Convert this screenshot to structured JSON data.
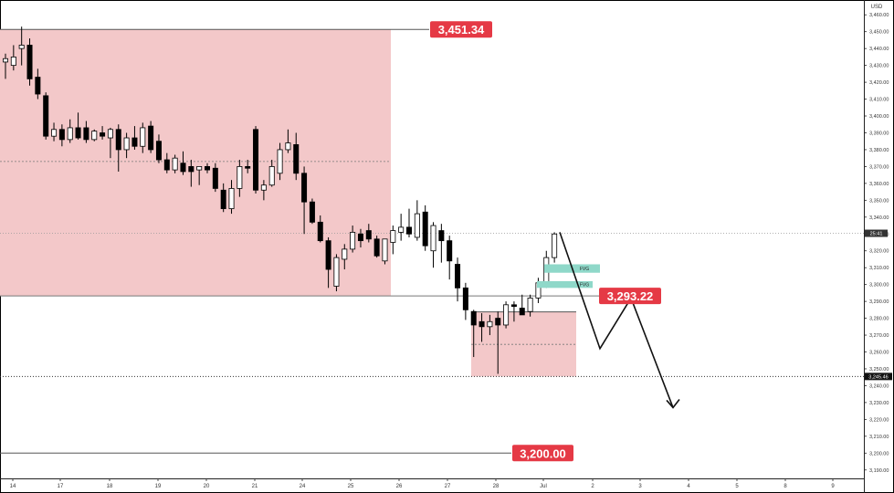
{
  "currency": "USD",
  "price_tag": "25:41",
  "annotations": {
    "resistance": "3,451.34",
    "support": "3,293.22",
    "target": "3,200.00",
    "zone_low": "3,245.46",
    "fvg_upper": "FVG",
    "fvg_lower": "FVG"
  },
  "colors": {
    "bull_body": "#ffffff",
    "bear_body": "#000000",
    "zone_fill": "#f3c8c9",
    "label_bg": "#e53945",
    "fvg_fill": "#8fd8c9",
    "grid": "#999999"
  },
  "chart_data": {
    "type": "candlestick",
    "y_axis": {
      "min": 3185,
      "max": 3465,
      "ticks": [
        3190,
        3200,
        3210,
        3220,
        3230,
        3240,
        3250,
        3260,
        3270,
        3280,
        3290,
        3300,
        3310,
        3320,
        3330,
        3340,
        3350,
        3360,
        3370,
        3380,
        3390,
        3400,
        3410,
        3420,
        3430,
        3440,
        3450,
        3460
      ],
      "tick_labels": [
        "3,190.00",
        "3,200.00",
        "3,210.00",
        "3,220.00",
        "3,230.00",
        "3,240.00",
        "3,250.00",
        "3,260.00",
        "3,270.00",
        "3,280.00",
        "3,290.00",
        "3,300.00",
        "3,310.00",
        "3,320.00",
        "3,330.00",
        "3,340.00",
        "3,350.00",
        "3,360.00",
        "3,370.00",
        "3,380.00",
        "3,390.00",
        "3,400.00",
        "3,410.00",
        "3,420.00",
        "3,430.00",
        "3,440.00",
        "3,450.00",
        "3,460.00"
      ]
    },
    "x_axis": {
      "labels": [
        "14",
        "17",
        "18",
        "19",
        "20",
        "21",
        "24",
        "25",
        "26",
        "27",
        "28",
        "Jul",
        "2",
        "3",
        "4",
        "5",
        "8",
        "9"
      ]
    },
    "candles": [
      {
        "o": 3432,
        "h": 3437,
        "l": 3422,
        "c": 3434
      },
      {
        "o": 3430,
        "h": 3442,
        "l": 3427,
        "c": 3435
      },
      {
        "o": 3440,
        "h": 3453,
        "l": 3430,
        "c": 3442
      },
      {
        "o": 3442,
        "h": 3446,
        "l": 3418,
        "c": 3422
      },
      {
        "o": 3423,
        "h": 3428,
        "l": 3410,
        "c": 3413
      },
      {
        "o": 3412,
        "h": 3414,
        "l": 3386,
        "c": 3388
      },
      {
        "o": 3388,
        "h": 3396,
        "l": 3385,
        "c": 3392
      },
      {
        "o": 3392,
        "h": 3395,
        "l": 3382,
        "c": 3386
      },
      {
        "o": 3386,
        "h": 3398,
        "l": 3384,
        "c": 3393
      },
      {
        "o": 3393,
        "h": 3402,
        "l": 3386,
        "c": 3387
      },
      {
        "o": 3393,
        "h": 3397,
        "l": 3384,
        "c": 3386
      },
      {
        "o": 3386,
        "h": 3392,
        "l": 3385,
        "c": 3391
      },
      {
        "o": 3390,
        "h": 3394,
        "l": 3386,
        "c": 3388
      },
      {
        "o": 3387,
        "h": 3393,
        "l": 3375,
        "c": 3392
      },
      {
        "o": 3392,
        "h": 3395,
        "l": 3367,
        "c": 3380
      },
      {
        "o": 3380,
        "h": 3390,
        "l": 3375,
        "c": 3387
      },
      {
        "o": 3387,
        "h": 3394,
        "l": 3380,
        "c": 3382
      },
      {
        "o": 3382,
        "h": 3396,
        "l": 3378,
        "c": 3393
      },
      {
        "o": 3394,
        "h": 3397,
        "l": 3378,
        "c": 3380
      },
      {
        "o": 3385,
        "h": 3389,
        "l": 3372,
        "c": 3374
      },
      {
        "o": 3374,
        "h": 3378,
        "l": 3366,
        "c": 3368
      },
      {
        "o": 3368,
        "h": 3377,
        "l": 3366,
        "c": 3375
      },
      {
        "o": 3372,
        "h": 3379,
        "l": 3365,
        "c": 3367
      },
      {
        "o": 3370,
        "h": 3374,
        "l": 3358,
        "c": 3367
      },
      {
        "o": 3368,
        "h": 3370,
        "l": 3359,
        "c": 3370
      },
      {
        "o": 3370,
        "h": 3372,
        "l": 3366,
        "c": 3368
      },
      {
        "o": 3369,
        "h": 3372,
        "l": 3355,
        "c": 3357
      },
      {
        "o": 3356,
        "h": 3360,
        "l": 3343,
        "c": 3345
      },
      {
        "o": 3345,
        "h": 3362,
        "l": 3342,
        "c": 3357
      },
      {
        "o": 3357,
        "h": 3374,
        "l": 3352,
        "c": 3370
      },
      {
        "o": 3370,
        "h": 3374,
        "l": 3366,
        "c": 3369
      },
      {
        "o": 3392,
        "h": 3394,
        "l": 3354,
        "c": 3356
      },
      {
        "o": 3356,
        "h": 3362,
        "l": 3350,
        "c": 3359
      },
      {
        "o": 3359,
        "h": 3374,
        "l": 3358,
        "c": 3370
      },
      {
        "o": 3366,
        "h": 3384,
        "l": 3362,
        "c": 3380
      },
      {
        "o": 3380,
        "h": 3392,
        "l": 3378,
        "c": 3384
      },
      {
        "o": 3383,
        "h": 3390,
        "l": 3362,
        "c": 3366
      },
      {
        "o": 3366,
        "h": 3370,
        "l": 3330,
        "c": 3349
      },
      {
        "o": 3349,
        "h": 3351,
        "l": 3336,
        "c": 3337
      },
      {
        "o": 3337,
        "h": 3341,
        "l": 3325,
        "c": 3326
      },
      {
        "o": 3326,
        "h": 3328,
        "l": 3298,
        "c": 3309
      },
      {
        "o": 3299,
        "h": 3318,
        "l": 3296,
        "c": 3316
      },
      {
        "o": 3315,
        "h": 3324,
        "l": 3309,
        "c": 3321
      },
      {
        "o": 3321,
        "h": 3335,
        "l": 3319,
        "c": 3331
      },
      {
        "o": 3330,
        "h": 3333,
        "l": 3322,
        "c": 3326
      },
      {
        "o": 3332,
        "h": 3336,
        "l": 3325,
        "c": 3327
      },
      {
        "o": 3327,
        "h": 3329,
        "l": 3316,
        "c": 3317
      },
      {
        "o": 3314,
        "h": 3327,
        "l": 3312,
        "c": 3327
      },
      {
        "o": 3325,
        "h": 3335,
        "l": 3318,
        "c": 3332
      },
      {
        "o": 3331,
        "h": 3342,
        "l": 3326,
        "c": 3334
      },
      {
        "o": 3334,
        "h": 3345,
        "l": 3328,
        "c": 3330
      },
      {
        "o": 3328,
        "h": 3350,
        "l": 3326,
        "c": 3342
      },
      {
        "o": 3343,
        "h": 3347,
        "l": 3320,
        "c": 3323
      },
      {
        "o": 3320,
        "h": 3337,
        "l": 3310,
        "c": 3335
      },
      {
        "o": 3332,
        "h": 3336,
        "l": 3313,
        "c": 3326
      },
      {
        "o": 3326,
        "h": 3329,
        "l": 3303,
        "c": 3314
      },
      {
        "o": 3312,
        "h": 3316,
        "l": 3290,
        "c": 3298
      },
      {
        "o": 3298,
        "h": 3301,
        "l": 3279,
        "c": 3285
      },
      {
        "o": 3284,
        "h": 3285,
        "l": 3257,
        "c": 3276
      },
      {
        "o": 3278,
        "h": 3283,
        "l": 3266,
        "c": 3275
      },
      {
        "o": 3275,
        "h": 3282,
        "l": 3270,
        "c": 3278
      },
      {
        "o": 3280,
        "h": 3284,
        "l": 3247,
        "c": 3276
      },
      {
        "o": 3276,
        "h": 3290,
        "l": 3274,
        "c": 3288
      },
      {
        "o": 3288,
        "h": 3290,
        "l": 3278,
        "c": 3287
      },
      {
        "o": 3286,
        "h": 3294,
        "l": 3282,
        "c": 3282
      },
      {
        "o": 3284,
        "h": 3294,
        "l": 3281,
        "c": 3292
      },
      {
        "o": 3292,
        "h": 3304,
        "l": 3289,
        "c": 3301
      },
      {
        "o": 3301,
        "h": 3320,
        "l": 3298,
        "c": 3316
      },
      {
        "o": 3316,
        "h": 3331,
        "l": 3313,
        "c": 3330
      }
    ],
    "projection": [
      3331,
      3262,
      3292,
      3227
    ],
    "zones": [
      {
        "y_top": 3451.34,
        "y_bottom": 3293.22
      },
      {
        "y_top": 3283.8,
        "y_bottom": 3245.46
      }
    ]
  }
}
